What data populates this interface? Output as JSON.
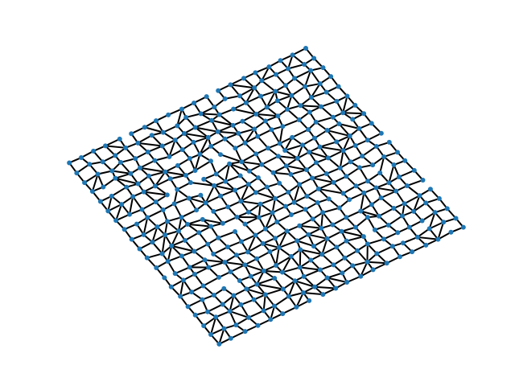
{
  "diagram": {
    "type": "network"
  }
}
